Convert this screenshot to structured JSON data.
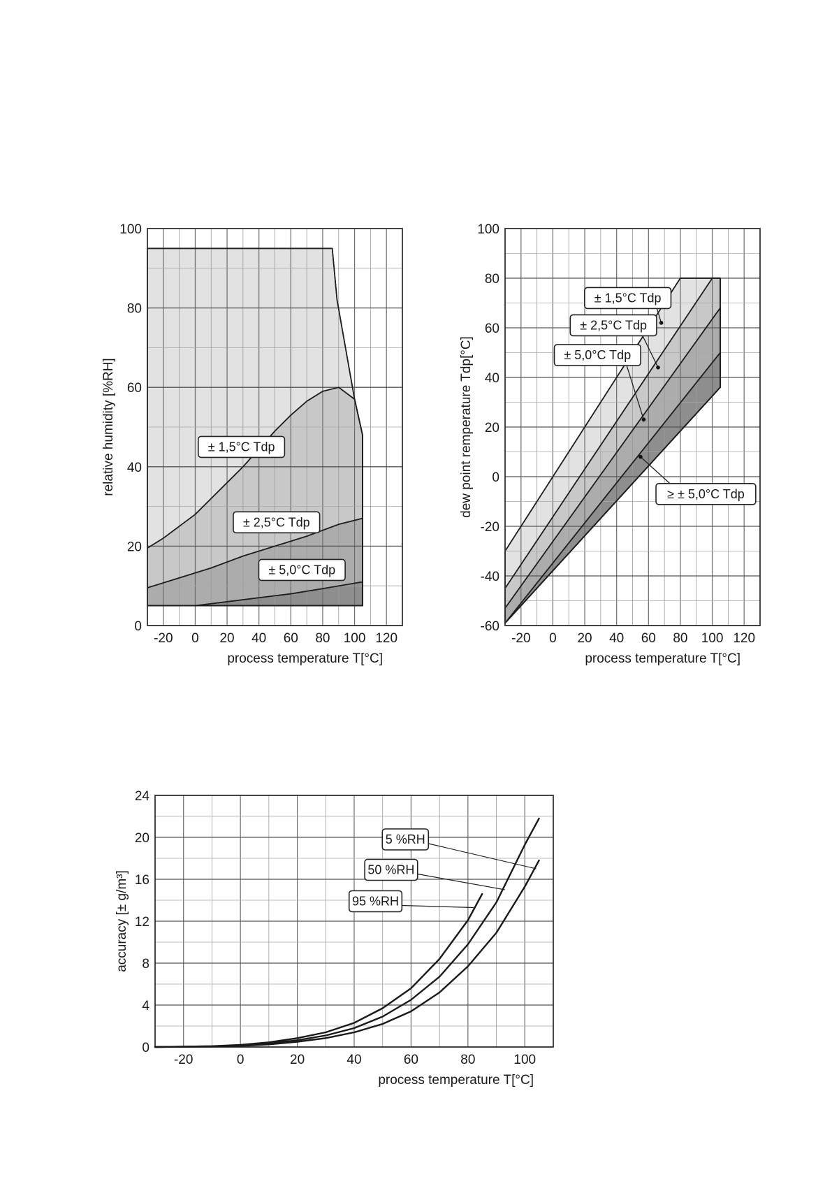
{
  "chart_data": [
    {
      "id": "rh",
      "type": "area",
      "xlabel": "process temperature T[°C]",
      "ylabel": "relative humidity [%RH]",
      "xlim": [
        -30,
        130
      ],
      "ylim": [
        0,
        100
      ],
      "xticks": [
        -20,
        0,
        20,
        40,
        60,
        80,
        100,
        120
      ],
      "yticks": [
        0,
        20,
        40,
        60,
        80,
        100
      ],
      "grid": true,
      "colors": {
        "c1": "#e2e2e2",
        "c2": "#c8c8c8",
        "c3": "#acacac",
        "c4": "#8e8e8e"
      },
      "regions": [
        {
          "name": "± 1,5°C Tdp",
          "points": [
            [
              -30,
              95
            ],
            [
              86,
              95
            ],
            [
              89,
              82
            ],
            [
              100,
              57
            ],
            [
              105,
              48
            ],
            [
              105,
              5
            ],
            [
              -30,
              5
            ]
          ]
        },
        {
          "name": "± 2,5°C Tdp",
          "points": [
            [
              -30,
              19.5
            ],
            [
              -20,
              22
            ],
            [
              -10,
              25
            ],
            [
              0,
              28
            ],
            [
              10,
              32
            ],
            [
              20,
              36
            ],
            [
              30,
              40
            ],
            [
              40,
              44.5
            ],
            [
              50,
              49
            ],
            [
              60,
              53
            ],
            [
              70,
              56.5
            ],
            [
              80,
              59
            ],
            [
              90,
              60
            ],
            [
              100,
              57
            ],
            [
              105,
              48
            ],
            [
              105,
              5
            ],
            [
              -30,
              5
            ]
          ]
        },
        {
          "name": "± 5,0°C Tdp",
          "points": [
            [
              -30,
              9.5
            ],
            [
              -10,
              12
            ],
            [
              10,
              14.5
            ],
            [
              30,
              17.5
            ],
            [
              50,
              20
            ],
            [
              70,
              22.5
            ],
            [
              90,
              25.5
            ],
            [
              105,
              27
            ],
            [
              105,
              5
            ],
            [
              -30,
              5
            ]
          ]
        },
        {
          "name": "",
          "points": [
            [
              -30,
              5
            ],
            [
              0,
              5
            ],
            [
              20,
              6
            ],
            [
              40,
              7
            ],
            [
              60,
              8
            ],
            [
              80,
              9.3
            ],
            [
              105,
              11
            ],
            [
              105,
              5
            ]
          ]
        }
      ],
      "labels": [
        {
          "text": "± 1,5°C Tdp",
          "x": 29,
          "y": 45
        },
        {
          "text": "± 2,5°C Tdp",
          "x": 51,
          "y": 26
        },
        {
          "text": "± 5,0°C Tdp",
          "x": 67,
          "y": 14
        }
      ]
    },
    {
      "id": "tdp",
      "type": "area",
      "xlabel": "process temperature T[°C]",
      "ylabel": "dew point remperature Tdp[°C]",
      "xlim": [
        -30,
        130
      ],
      "ylim": [
        -60,
        100
      ],
      "xticks": [
        -20,
        0,
        20,
        40,
        60,
        80,
        100,
        120
      ],
      "yticks": [
        -60,
        -40,
        -20,
        0,
        20,
        40,
        60,
        80,
        100
      ],
      "grid": true,
      "colors": {
        "c1": "#e2e2e2",
        "c2": "#c8c8c8",
        "c3": "#acacac",
        "c4": "#8e8e8e"
      },
      "regions": [
        {
          "name": "± 1,5°C Tdp",
          "points": [
            [
              -30,
              -30
            ],
            [
              80,
              80
            ],
            [
              105,
              80
            ],
            [
              105,
              36
            ],
            [
              -30,
              -59
            ]
          ]
        },
        {
          "name": "± 2,5°C Tdp",
          "points": [
            [
              -30,
              -45
            ],
            [
              100,
              80
            ],
            [
              105,
              80
            ],
            [
              105,
              36
            ],
            [
              -30,
              -59
            ]
          ]
        },
        {
          "name": "± 5,0°C Tdp",
          "points": [
            [
              -30,
              -53
            ],
            [
              105,
              68
            ],
            [
              105,
              36
            ],
            [
              -30,
              -59
            ]
          ]
        },
        {
          "name": "≥ ± 5,0°C Tdp",
          "points": [
            [
              -30,
              -59
            ],
            [
              105,
              50
            ],
            [
              105,
              36
            ]
          ]
        }
      ],
      "labels": [
        {
          "text": "± 1,5°C Tdp",
          "x": 47,
          "y": 72,
          "dot": [
            68,
            62
          ]
        },
        {
          "text": "± 2,5°C Tdp",
          "x": 38,
          "y": 61,
          "dot": [
            66,
            44
          ]
        },
        {
          "text": "± 5,0°C Tdp",
          "x": 28,
          "y": 49,
          "dot": [
            57,
            23
          ]
        },
        {
          "text": "≥ ± 5,0°C Tdp",
          "x": 96,
          "y": -7,
          "dot": [
            55,
            8
          ]
        }
      ]
    },
    {
      "id": "acc",
      "type": "line",
      "xlabel": "process temperature T[°C]",
      "ylabel": "accuracy  [± g/m³]",
      "xlim": [
        -30,
        110
      ],
      "ylim": [
        0,
        24
      ],
      "xticks": [
        -20,
        0,
        20,
        40,
        60,
        80,
        100
      ],
      "yticks": [
        0,
        4,
        8,
        12,
        16,
        20,
        24
      ],
      "grid": true,
      "series": [
        {
          "name": "5 %RH",
          "x": [
            -30,
            -20,
            -10,
            0,
            10,
            20,
            30,
            40,
            50,
            60,
            70,
            80,
            90,
            100,
            105
          ],
          "values": [
            0,
            0.02,
            0.05,
            0.1,
            0.25,
            0.5,
            0.85,
            1.4,
            2.2,
            3.4,
            5.2,
            7.7,
            10.9,
            15.3,
            17.8
          ]
        },
        {
          "name": "50 %RH",
          "x": [
            -30,
            -20,
            -10,
            0,
            10,
            20,
            30,
            40,
            50,
            60,
            70,
            80,
            90,
            100,
            105
          ],
          "values": [
            0,
            0.03,
            0.07,
            0.15,
            0.35,
            0.65,
            1.1,
            1.8,
            2.9,
            4.5,
            6.7,
            9.8,
            13.8,
            19.3,
            21.8
          ]
        },
        {
          "name": "95 %RH",
          "x": [
            -30,
            -20,
            -10,
            0,
            10,
            20,
            30,
            40,
            50,
            60,
            70,
            80,
            85
          ],
          "values": [
            0,
            0.03,
            0.08,
            0.2,
            0.45,
            0.85,
            1.4,
            2.3,
            3.7,
            5.6,
            8.4,
            12.1,
            14.6
          ]
        }
      ],
      "labels": [
        {
          "text": "5 %RH",
          "x": 58,
          "y": 19.8,
          "target": [
            104,
            17
          ]
        },
        {
          "text": "50 %RH",
          "x": 53,
          "y": 16.9,
          "target": [
            93,
            15
          ]
        },
        {
          "text": "95 %RH",
          "x": 47.5,
          "y": 13.9,
          "target": [
            82,
            13.3
          ]
        }
      ]
    }
  ]
}
